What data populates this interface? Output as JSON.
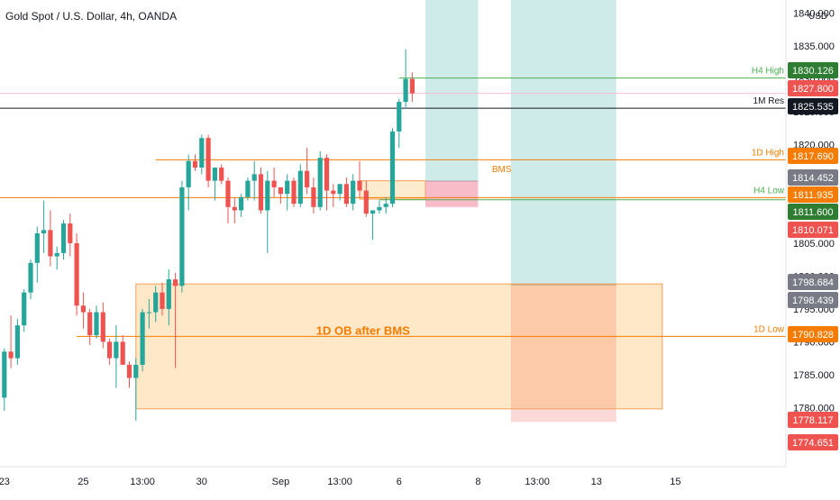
{
  "title": "Gold Spot / U.S. Dollar, 4h, OANDA",
  "currency": "USD",
  "colors": {
    "up": "#26a69a",
    "down": "#ef5350",
    "orange": "#f57c00",
    "green_line": "#4caf50",
    "axis_text": "#131722",
    "dark_label": "#131722",
    "gray_label": "#787b86"
  },
  "chart_data": {
    "type": "candlestick",
    "title": "Gold Spot / U.S. Dollar, 4h, OANDA",
    "ylim": [
      1771,
      1842
    ],
    "y_ticks": [
      "1840.000",
      "1835.000",
      "1830.000",
      "1825.000",
      "1820.000",
      "1815.000",
      "1810.000",
      "1805.000",
      "1800.000",
      "1795.000",
      "1790.000",
      "1785.000",
      "1780.000",
      "1775.000"
    ],
    "x_ticks": [
      {
        "label": "23",
        "index": 1
      },
      {
        "label": "25",
        "index": 13
      },
      {
        "label": "13:00",
        "index": 22
      },
      {
        "label": "30",
        "index": 31
      },
      {
        "label": "Sep",
        "index": 43
      },
      {
        "label": "13:00",
        "index": 52
      },
      {
        "label": "6",
        "index": 61
      },
      {
        "label": "8",
        "index": 73
      },
      {
        "label": "13:00",
        "index": 82
      },
      {
        "label": "13",
        "index": 91
      },
      {
        "label": "15",
        "index": 103
      }
    ],
    "candles": [
      [
        1786.5,
        1787.0,
        1778.0,
        1781.5
      ],
      [
        1781.5,
        1789.0,
        1779.5,
        1788.5
      ],
      [
        1788.5,
        1794.0,
        1786.0,
        1787.5
      ],
      [
        1787.5,
        1793.5,
        1786.5,
        1792.5
      ],
      [
        1792.5,
        1798.0,
        1791.5,
        1797.5
      ],
      [
        1797.5,
        1802.5,
        1796.5,
        1802.0
      ],
      [
        1802.0,
        1807.5,
        1799.0,
        1806.5
      ],
      [
        1806.5,
        1811.5,
        1803.5,
        1807.0
      ],
      [
        1807.0,
        1810.0,
        1801.5,
        1803.0
      ],
      [
        1803.0,
        1804.5,
        1801.0,
        1803.5
      ],
      [
        1803.5,
        1808.5,
        1802.5,
        1808.0
      ],
      [
        1808.0,
        1809.5,
        1803.0,
        1805.0
      ],
      [
        1805.0,
        1806.5,
        1794.0,
        1795.5
      ],
      [
        1795.5,
        1797.5,
        1792.0,
        1794.5
      ],
      [
        1794.5,
        1795.0,
        1789.5,
        1791.0
      ],
      [
        1791.0,
        1795.5,
        1790.5,
        1794.5
      ],
      [
        1794.5,
        1796.0,
        1789.0,
        1790.0
      ],
      [
        1790.0,
        1790.5,
        1786.5,
        1787.5
      ],
      [
        1787.5,
        1792.5,
        1783.0,
        1790.0
      ],
      [
        1790.0,
        1791.0,
        1786.5,
        1786.5
      ],
      [
        1786.5,
        1787.0,
        1783.0,
        1784.5
      ],
      [
        1784.5,
        1787.5,
        1778.0,
        1786.5
      ],
      [
        1786.5,
        1795.0,
        1785.5,
        1794.5
      ],
      [
        1794.5,
        1796.5,
        1792.0,
        1794.5
      ],
      [
        1794.5,
        1798.5,
        1793.0,
        1797.5
      ],
      [
        1797.5,
        1799.0,
        1794.0,
        1795.0
      ],
      [
        1795.0,
        1801.0,
        1792.5,
        1799.5
      ],
      [
        1799.5,
        1800.5,
        1786.0,
        1798.5
      ],
      [
        1798.5,
        1814.5,
        1797.5,
        1813.5
      ],
      [
        1813.5,
        1818.5,
        1810.0,
        1817.5
      ],
      [
        1817.5,
        1818.5,
        1816.0,
        1816.5
      ],
      [
        1816.5,
        1821.5,
        1815.5,
        1821.0
      ],
      [
        1821.0,
        1821.5,
        1813.5,
        1814.5
      ],
      [
        1814.5,
        1816.5,
        1811.5,
        1816.5
      ],
      [
        1816.5,
        1817.0,
        1814.0,
        1814.5
      ],
      [
        1814.5,
        1815.0,
        1808.0,
        1810.5
      ],
      [
        1810.5,
        1812.0,
        1808.0,
        1810.0
      ],
      [
        1810.0,
        1812.5,
        1809.0,
        1812.0
      ],
      [
        1812.0,
        1815.0,
        1811.5,
        1814.5
      ],
      [
        1814.5,
        1817.5,
        1811.5,
        1815.5
      ],
      [
        1815.5,
        1816.5,
        1809.5,
        1810.0
      ],
      [
        1810.0,
        1816.0,
        1803.5,
        1814.5
      ],
      [
        1814.5,
        1816.5,
        1812.0,
        1813.5
      ],
      [
        1813.5,
        1813.5,
        1811.0,
        1812.5
      ],
      [
        1812.5,
        1815.5,
        1810.0,
        1814.5
      ],
      [
        1814.5,
        1815.0,
        1810.5,
        1811.0
      ],
      [
        1811.0,
        1817.0,
        1810.5,
        1816.0
      ],
      [
        1816.0,
        1819.5,
        1812.5,
        1813.5
      ],
      [
        1813.5,
        1815.0,
        1809.5,
        1810.5
      ],
      [
        1810.5,
        1819.0,
        1810.0,
        1818.0
      ],
      [
        1818.0,
        1818.5,
        1810.0,
        1813.0
      ],
      [
        1813.0,
        1814.0,
        1810.5,
        1812.5
      ],
      [
        1812.5,
        1814.0,
        1811.5,
        1814.0
      ],
      [
        1814.0,
        1815.0,
        1810.5,
        1811.0
      ],
      [
        1811.0,
        1815.5,
        1810.0,
        1814.5
      ],
      [
        1814.5,
        1817.5,
        1812.0,
        1813.0
      ],
      [
        1813.0,
        1814.5,
        1809.0,
        1809.5
      ],
      [
        1809.5,
        1810.0,
        1805.5,
        1810.0
      ],
      [
        1810.0,
        1811.5,
        1809.5,
        1810.5
      ],
      [
        1810.5,
        1812.0,
        1809.5,
        1811.0
      ],
      [
        1811.0,
        1822.5,
        1810.5,
        1822.0
      ],
      [
        1822.0,
        1827.0,
        1819.5,
        1826.5
      ],
      [
        1826.5,
        1834.5,
        1825.5,
        1830.0
      ],
      [
        1830.0,
        1831.0,
        1826.5,
        1827.8
      ]
    ],
    "levels": [
      {
        "name": "H4 High",
        "price": 1830.126,
        "value_label": "1830.126",
        "color": "#4caf50",
        "x_start": 61,
        "label_color": "#4caf50"
      },
      {
        "name": "",
        "price": 1827.8,
        "value_label": "1827.800",
        "color": "#f8bbd0",
        "x_start": 0,
        "label_color": ""
      },
      {
        "name": "1M Res",
        "price": 1825.535,
        "value_label": "1825.535",
        "color": "#131722",
        "x_start": 0,
        "label_color": "#131722"
      },
      {
        "name": "1D High",
        "price": 1817.69,
        "value_label": "1817.690",
        "color": "#f57c00",
        "x_start": 24,
        "label_color": "#f57c00"
      },
      {
        "name": "",
        "price": 1814.452,
        "value_label": "1814.452",
        "color": "#787b86",
        "x_start": 0,
        "label_color": ""
      },
      {
        "name": "H4 Low",
        "price": 1811.935,
        "value_label": "1811.935",
        "color": "#f57c00",
        "x_start": 0,
        "label_color": "#4caf50"
      },
      {
        "name": "",
        "price": 1811.6,
        "value_label": "1811.600",
        "color": "#4caf50",
        "x_start": 58,
        "label_color": ""
      },
      {
        "name": "",
        "price": 1810.071,
        "value_label": "1810.071",
        "color": "#ef5350",
        "x_start": 0,
        "label_color": ""
      },
      {
        "name": "",
        "price": 1798.684,
        "value_label": "1798.684",
        "color": "#787b86",
        "x_start": 0,
        "label_color": ""
      },
      {
        "name": "",
        "price": 1798.439,
        "value_label": "1798.439",
        "color": "#787b86",
        "x_start": 0,
        "label_color": ""
      },
      {
        "name": "1D Low",
        "price": 1790.828,
        "value_label": "1790.828",
        "color": "#f57c00",
        "x_start": 12,
        "label_color": "#f57c00"
      },
      {
        "name": "",
        "price": 1778.117,
        "value_label": "1778.117",
        "color": "#ef5350",
        "x_start": 0,
        "label_color": ""
      },
      {
        "name": "",
        "price": 1774.651,
        "value_label": "1774.651",
        "color": "#ef5350",
        "x_start": 0,
        "label_color": ""
      }
    ],
    "zones": [
      {
        "name": "1D OB after BMS",
        "x0": 21,
        "x1": 101,
        "y_top": 1798.8,
        "y_bottom": 1779.8,
        "fill": "rgba(255,152,0,0.22)",
        "stroke": "#f5a05a",
        "text_color": "#f57c00"
      },
      {
        "name": "",
        "x0": 55,
        "x1": 65,
        "y_top": 1814.5,
        "y_bottom": 1811.7,
        "fill": "rgba(255,183,77,0.28)",
        "stroke": "#f5a05a",
        "text_color": ""
      },
      {
        "name": "",
        "x0": 65,
        "x1": 73,
        "y_top": 1814.5,
        "y_bottom": 1810.5,
        "fill": "rgba(244,143,177,0.38)",
        "stroke": "none",
        "text_color": ""
      }
    ],
    "positions": [
      {
        "x0": 65,
        "x1": 73,
        "entry": 1814.452,
        "target": 1842,
        "stop": 1810.5
      },
      {
        "x0": 78,
        "x1": 94,
        "entry": 1798.684,
        "target": 1842,
        "stop": 1777.8
      }
    ],
    "inner_labels": [
      {
        "text": "BMS",
        "price": 1814.2,
        "index": 68,
        "color": "#f57c00"
      }
    ]
  }
}
